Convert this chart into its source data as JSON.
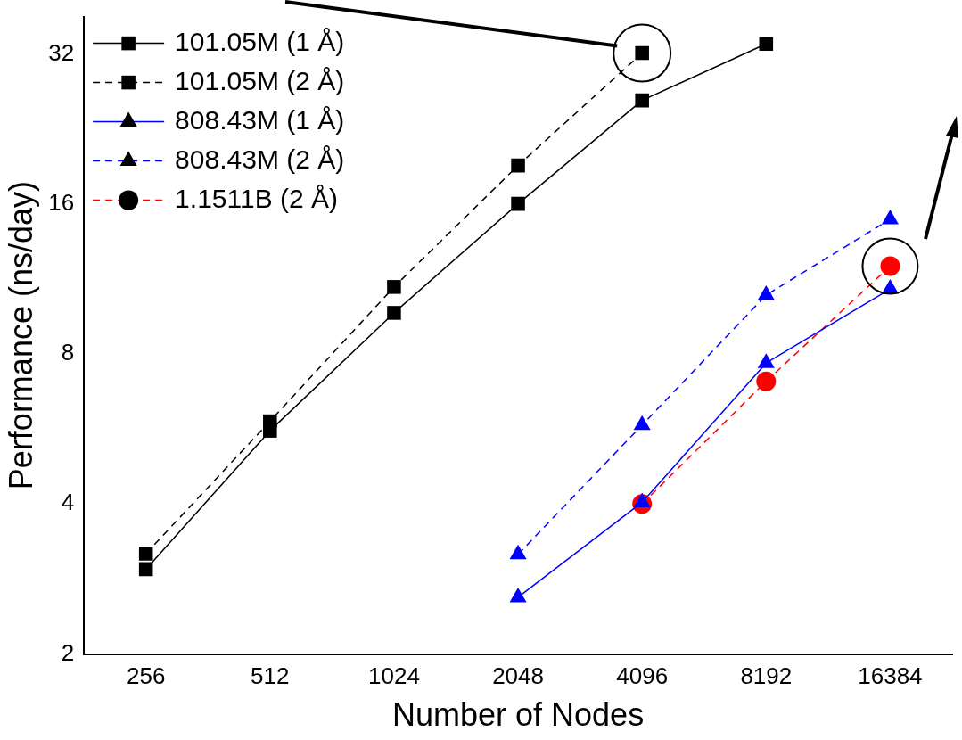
{
  "chart_data": {
    "type": "line",
    "xlabel": "Number of Nodes",
    "ylabel": "Performance (ns/day)",
    "categories": [
      "256",
      "512",
      "1024",
      "2048",
      "4096",
      "8192",
      "16384"
    ],
    "log": "y",
    "ylim": [
      2,
      38
    ],
    "yticks": [
      2,
      4,
      8,
      16,
      32
    ],
    "grid": false,
    "legend": "top left",
    "series": [
      {
        "name": "101.05M (1 Å)",
        "color": "#000000",
        "marker": "square",
        "line_style": "solid",
        "values": [
          2.96,
          5.61,
          9.67,
          16,
          25.8,
          33.5,
          null
        ]
      },
      {
        "name": "101.05M (2 Å)",
        "color": "#000000",
        "marker": "square",
        "line_style": "dashed",
        "values": [
          3.18,
          5.86,
          10.9,
          19.1,
          32.1,
          null,
          null
        ]
      },
      {
        "name": "808.43M (1 Å)",
        "color": "#0000ff",
        "marker": "triangle",
        "line_style": "solid",
        "values": [
          null,
          null,
          null,
          2.6,
          4.03,
          7.67,
          10.8
        ]
      },
      {
        "name": "808.43M (2 Å)",
        "color": "#0000ff",
        "marker": "triangle",
        "line_style": "dashed",
        "values": [
          null,
          null,
          null,
          3.17,
          5.76,
          10.5,
          14.9
        ]
      },
      {
        "name": "1.1511B (2 Å)",
        "color": "#ff0000",
        "marker": "circle",
        "line_style": "dashed",
        "values": [
          null,
          null,
          null,
          null,
          4.0,
          7.05,
          12.0
        ]
      }
    ]
  }
}
